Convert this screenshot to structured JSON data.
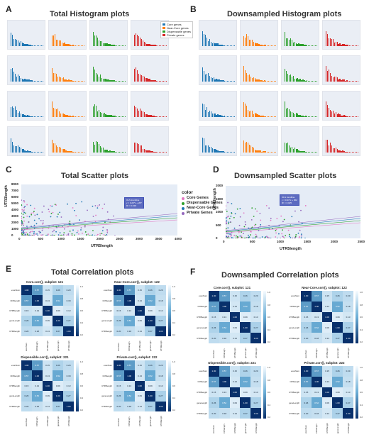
{
  "panels": {
    "A": {
      "letter": "A",
      "title": "Total Histogram plots"
    },
    "B": {
      "letter": "B",
      "title": "Downsampled Histogram plots"
    },
    "C": {
      "letter": "C",
      "title": "Total Scatter plots"
    },
    "D": {
      "letter": "D",
      "title": "Downsampled Scatter plots"
    },
    "E": {
      "letter": "E",
      "title": "Total Correlation plots"
    },
    "F": {
      "letter": "F",
      "title": "Downsampled Correlation plots"
    }
  },
  "hist_legend": {
    "items": [
      {
        "label": "Core genes",
        "color": "#1f77b4"
      },
      {
        "label": "Near-Core genes",
        "color": "#ff7f0e"
      },
      {
        "label": "Dispensable genes",
        "color": "#2ca02c"
      },
      {
        "label": "Private genes",
        "color": "#d62728"
      }
    ]
  },
  "hist_colors": [
    "#1f77b4",
    "#ff7f0e",
    "#2ca02c",
    "#d62728"
  ],
  "scatter_total": {
    "ylabel": "UTR3length",
    "xlabel": "UTR5length",
    "xticks": [
      "0",
      "500",
      "1000",
      "1500",
      "2000",
      "2500",
      "3000",
      "3500",
      "4000"
    ],
    "yticks": [
      "0",
      "1000",
      "2000",
      "3000",
      "4000",
      "5000",
      "6000",
      "7000",
      "8000"
    ],
    "xlim": [
      0,
      4000
    ],
    "ylim": [
      0,
      8000
    ],
    "legend_title": "color",
    "legend": [
      {
        "label": "Core Genes",
        "color": "#e377c2"
      },
      {
        "label": "Dispensable Genes",
        "color": "#2ca02c"
      },
      {
        "label": "Near-Core Genes",
        "color": "#1f77b4"
      },
      {
        "label": "Private Genes",
        "color": "#9467bd"
      }
    ]
  },
  "scatter_down": {
    "ylabel": "UTR3length",
    "xlabel": "UTR5length",
    "xticks": [
      "0",
      "500",
      "1000",
      "1500",
      "2000",
      "2500"
    ],
    "yticks": [
      "0",
      "500",
      "1000",
      "1500",
      "2000"
    ],
    "xlim": [
      0,
      2500
    ],
    "ylim": [
      0,
      2300
    ]
  },
  "heatmaps_total": [
    {
      "title": "Core.corr(),  subplot: 121"
    },
    {
      "title": "Near-Core.corr(),  subplot: 122"
    },
    {
      "title": "Dispensible.corr(),  subplot: 221"
    },
    {
      "title": "Private.corr(),  subplot: 222"
    }
  ],
  "heatmaps_down": [
    {
      "title": "Core.corr(),  subplot: 121"
    },
    {
      "title": "Near-Core.corr(),  subplot: 122"
    },
    {
      "title": "Dispensible.corr(),  subplot: 221"
    },
    {
      "title": "Private.corr(),  subplot: 222"
    }
  ],
  "heat_labels": [
    "exonNum",
    "CDSlength",
    "UTR5length",
    "geneLength",
    "UTR3length"
  ],
  "heat_values": [
    [
      1.0,
      0.57,
      0.15,
      0.26,
      0.2
    ],
    [
      0.57,
      1.0,
      0.13,
      0.52,
      0.18
    ],
    [
      0.15,
      0.13,
      1.0,
      0.09,
      0.13
    ],
    [
      0.26,
      0.52,
      0.09,
      1.0,
      0.27
    ],
    [
      0.2,
      0.18,
      0.13,
      0.27,
      1.0
    ]
  ],
  "cbar_ticks": [
    "1.0",
    "0.8",
    "0.6",
    "0.4",
    "0.2"
  ]
}
